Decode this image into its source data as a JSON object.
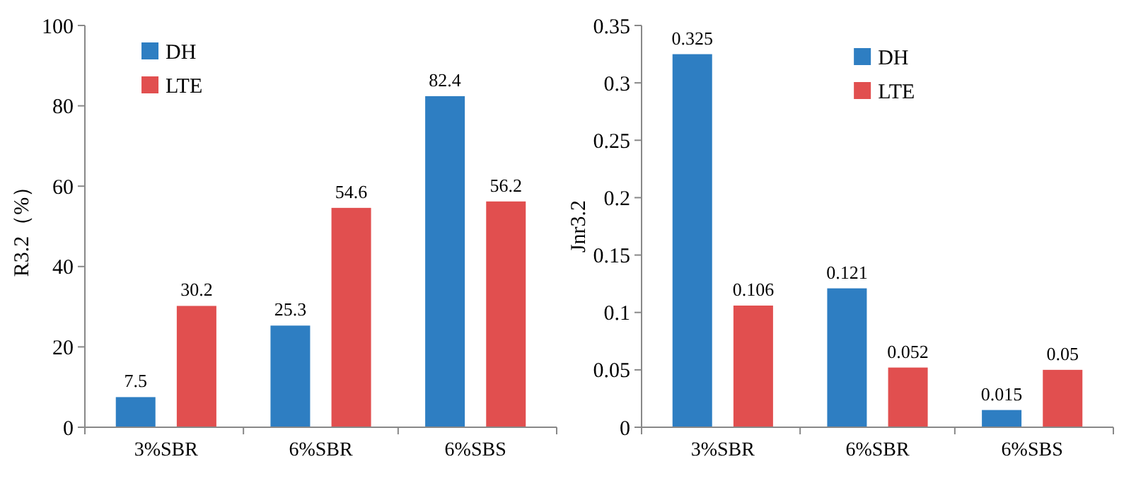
{
  "chart_data": [
    {
      "type": "bar",
      "ylabel": "R3.2（%）",
      "categories": [
        "3%SBR",
        "6%SBR",
        "6%SBS"
      ],
      "series": [
        {
          "name": "DH",
          "color": "#2e7ec2",
          "values": [
            7.5,
            25.3,
            82.4
          ]
        },
        {
          "name": "LTE",
          "color": "#e14f4f",
          "values": [
            30.2,
            54.6,
            56.2
          ]
        }
      ],
      "ylim": [
        0,
        100
      ],
      "yticks": [
        0,
        20,
        40,
        60,
        80,
        100
      ],
      "data_labels": true,
      "legend": "top left"
    },
    {
      "type": "bar",
      "ylabel": "Jnr3.2",
      "categories": [
        "3%SBR",
        "6%SBR",
        "6%SBS"
      ],
      "series": [
        {
          "name": "DH",
          "color": "#2e7ec2",
          "values": [
            0.325,
            0.121,
            0.015
          ]
        },
        {
          "name": "LTE",
          "color": "#e14f4f",
          "values": [
            0.106,
            0.052,
            0.05
          ]
        }
      ],
      "ylim": [
        0,
        0.35
      ],
      "yticks": [
        0,
        0.05,
        0.1,
        0.15,
        0.2,
        0.25,
        0.3,
        0.35
      ],
      "data_labels": true,
      "legend": "top"
    }
  ]
}
